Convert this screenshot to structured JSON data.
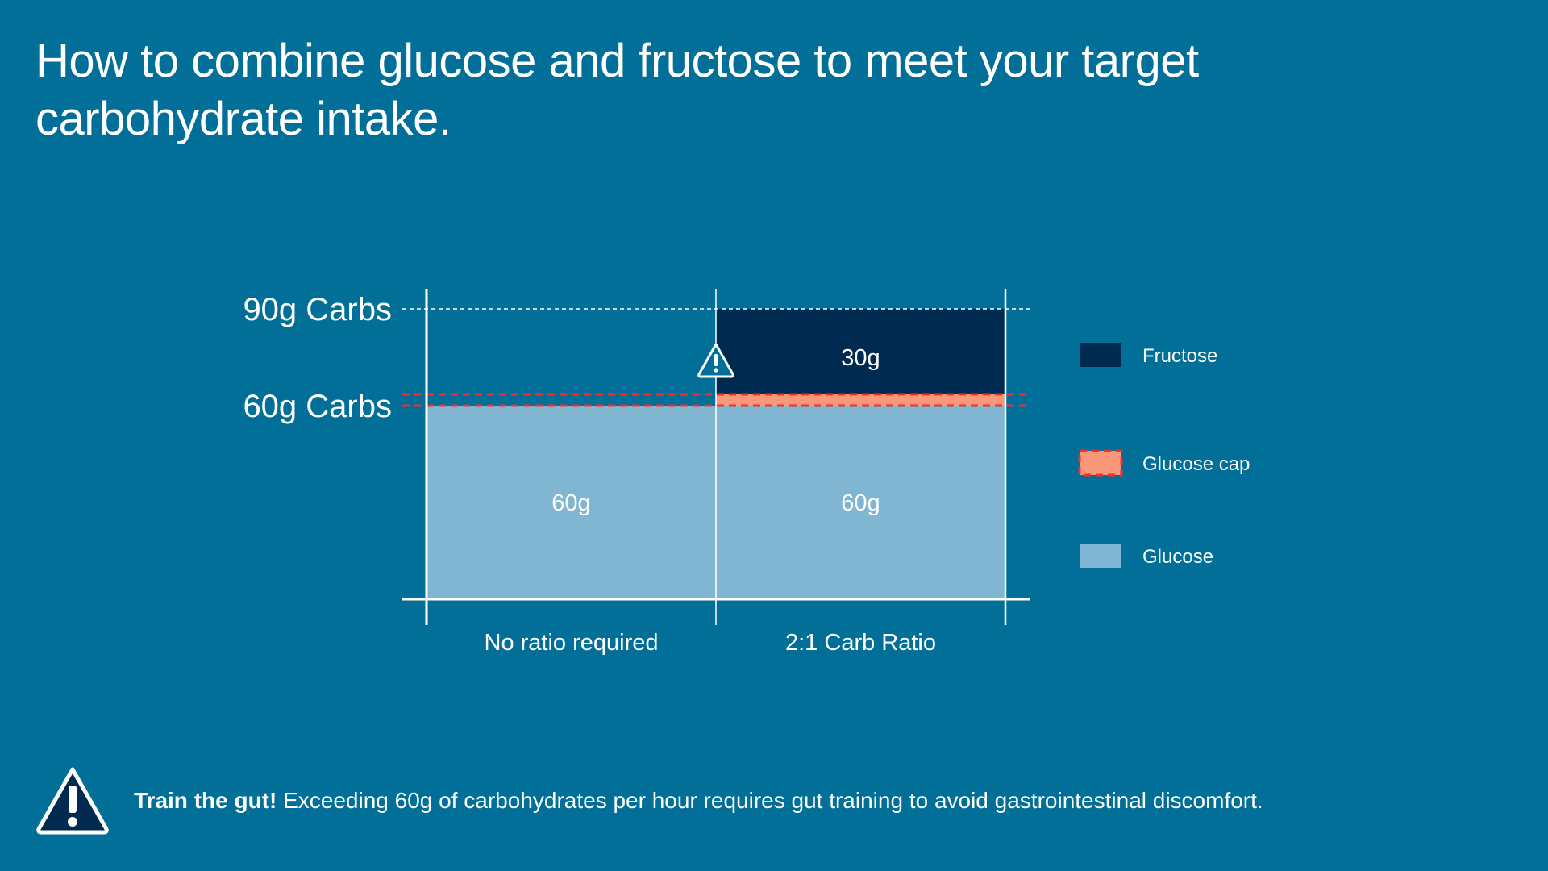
{
  "title": "How to combine glucose and fructose to meet your target carbohydrate intake.",
  "chart_data": {
    "type": "bar",
    "stacked": true,
    "categories": [
      "No ratio required",
      "2:1 Carb Ratio"
    ],
    "series": [
      {
        "name": "Glucose",
        "values": [
          60,
          60
        ],
        "labels": [
          "60g",
          "60g"
        ],
        "color": "#80b6d2"
      },
      {
        "name": "Fructose",
        "values": [
          0,
          30
        ],
        "labels": [
          "",
          "30g"
        ],
        "color": "#002a4f"
      }
    ],
    "glucose_cap": {
      "value": 60,
      "name": "Glucose cap",
      "color": "#f89878",
      "line_color": "#ff2a2a"
    },
    "reference_lines": [
      {
        "value": 90,
        "label": "90g Carbs"
      },
      {
        "value": 60,
        "label": "60g Carbs"
      }
    ],
    "ylim": [
      0,
      90
    ],
    "legend": {
      "placement": "right",
      "items": [
        {
          "name": "Fructose",
          "color": "#002a4f"
        },
        {
          "name": "Glucose cap",
          "color": "#f89878"
        },
        {
          "name": "Glucose",
          "color": "#80b6d2"
        }
      ]
    },
    "warning_icon": "warning-triangle-icon"
  },
  "footer": {
    "icon": "warning-triangle-icon",
    "bold": "Train the gut!",
    "text": " Exceeding 60g of carbohydrates per hour requires gut training to avoid gastrointestinal discomfort."
  }
}
